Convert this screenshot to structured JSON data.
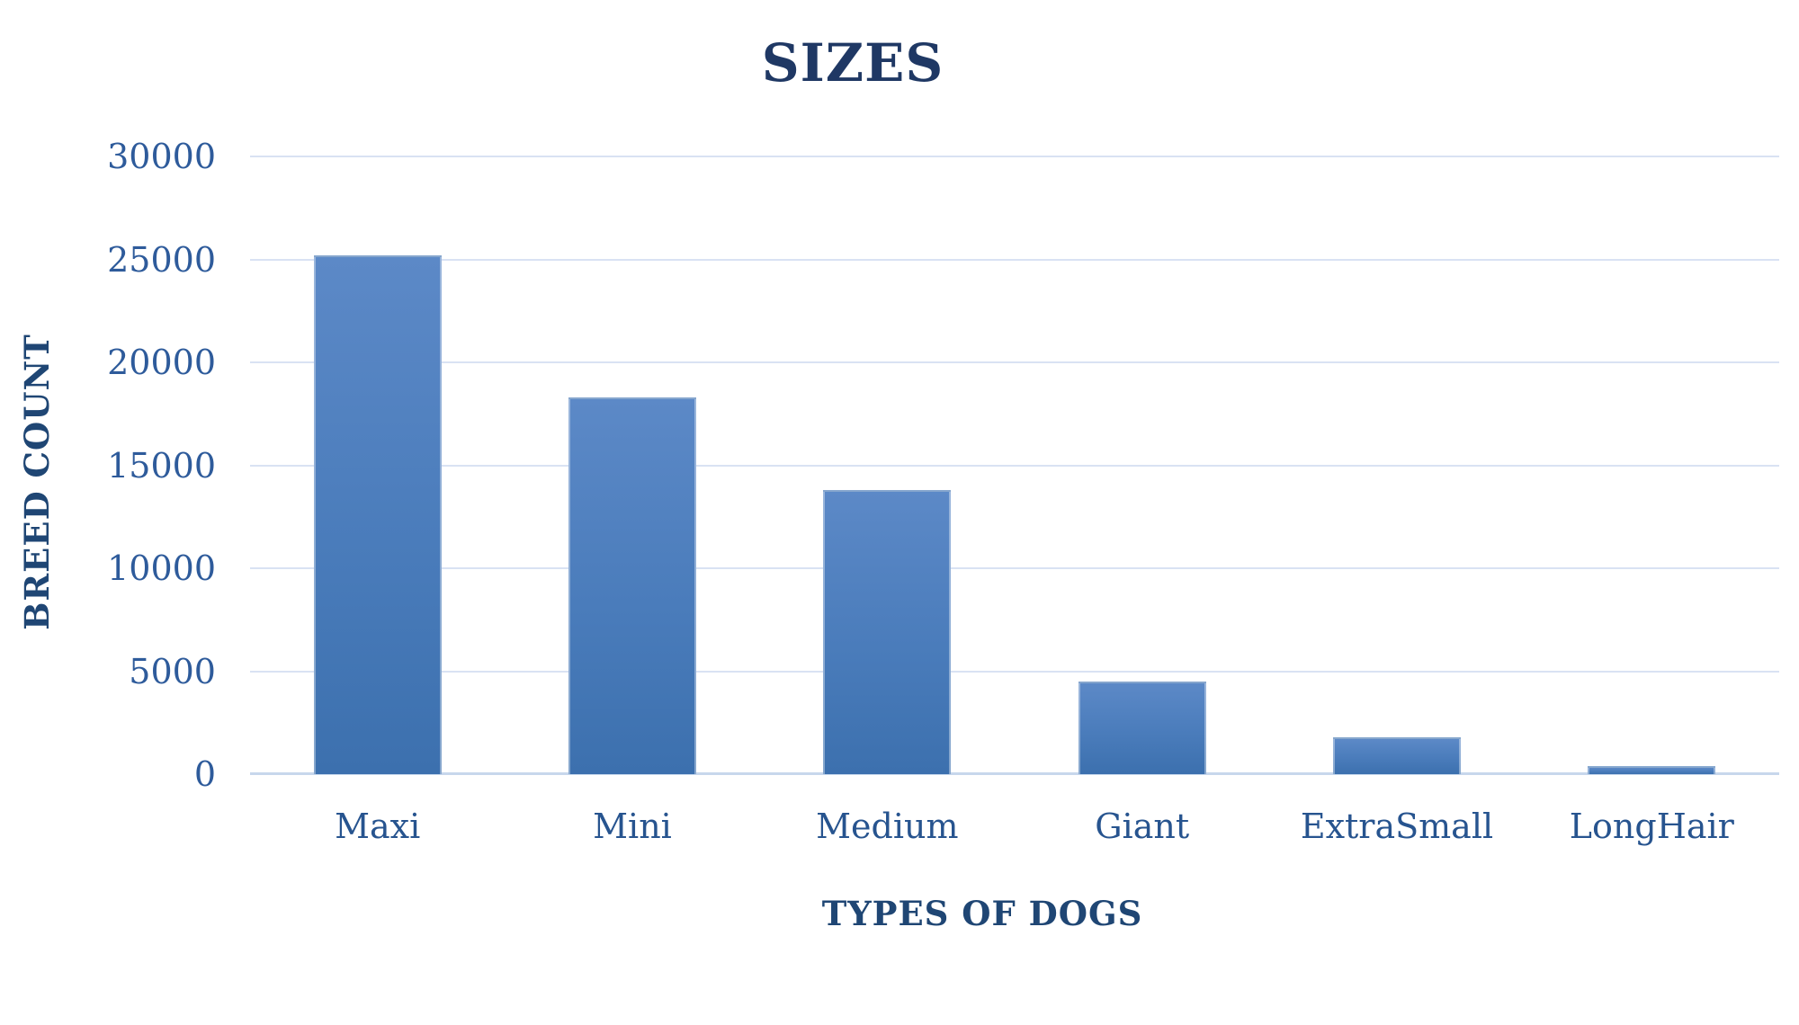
{
  "chart_data": {
    "type": "bar",
    "title": "SIZES",
    "xlabel": "TYPES OF DOGS",
    "ylabel": "BREED COUNT",
    "categories": [
      "Maxi",
      "Mini",
      "Medium",
      "Giant",
      "ExtraSmall",
      "LongHair"
    ],
    "values": [
      25200,
      18300,
      13800,
      4500,
      1800,
      400
    ],
    "ylim": [
      0,
      30000
    ],
    "yticks": [
      0,
      5000,
      10000,
      15000,
      20000,
      25000,
      30000
    ],
    "grid": true,
    "legend_position": "none",
    "bar_orientation": "vertical"
  },
  "colors": {
    "background": "#FFFFFF",
    "title": "#1F3864",
    "axis_title": "#1F4674",
    "tick_label": "#2E5B9B",
    "category_label": "#27548F",
    "gridline": "#D9E2F3",
    "baseline": "#C7D7EC",
    "bar_gradient_top": "#5C89C7",
    "bar_gradient_mid": "#4A7CBB",
    "bar_gradient_bottom": "#3C70AE"
  }
}
